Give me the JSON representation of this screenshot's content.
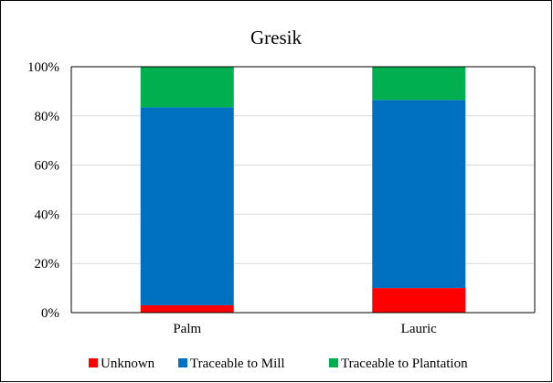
{
  "chart_data": {
    "type": "bar",
    "stacked": true,
    "percent_stacked": true,
    "title": "Gresik",
    "categories": [
      "Palm",
      "Lauric"
    ],
    "series": [
      {
        "name": "Unknown",
        "color": "#ff0000",
        "values": [
          3,
          10
        ]
      },
      {
        "name": "Traceable to Mill",
        "color": "#0070c0",
        "values": [
          80.5,
          76.5
        ]
      },
      {
        "name": "Traceable to Plantation",
        "color": "#00b050",
        "values": [
          16.5,
          13.5
        ]
      }
    ],
    "y_ticks": [
      "0%",
      "20%",
      "40%",
      "60%",
      "80%",
      "100%"
    ],
    "ylim": [
      0,
      100
    ],
    "grid": true,
    "legend_position": "bottom"
  }
}
